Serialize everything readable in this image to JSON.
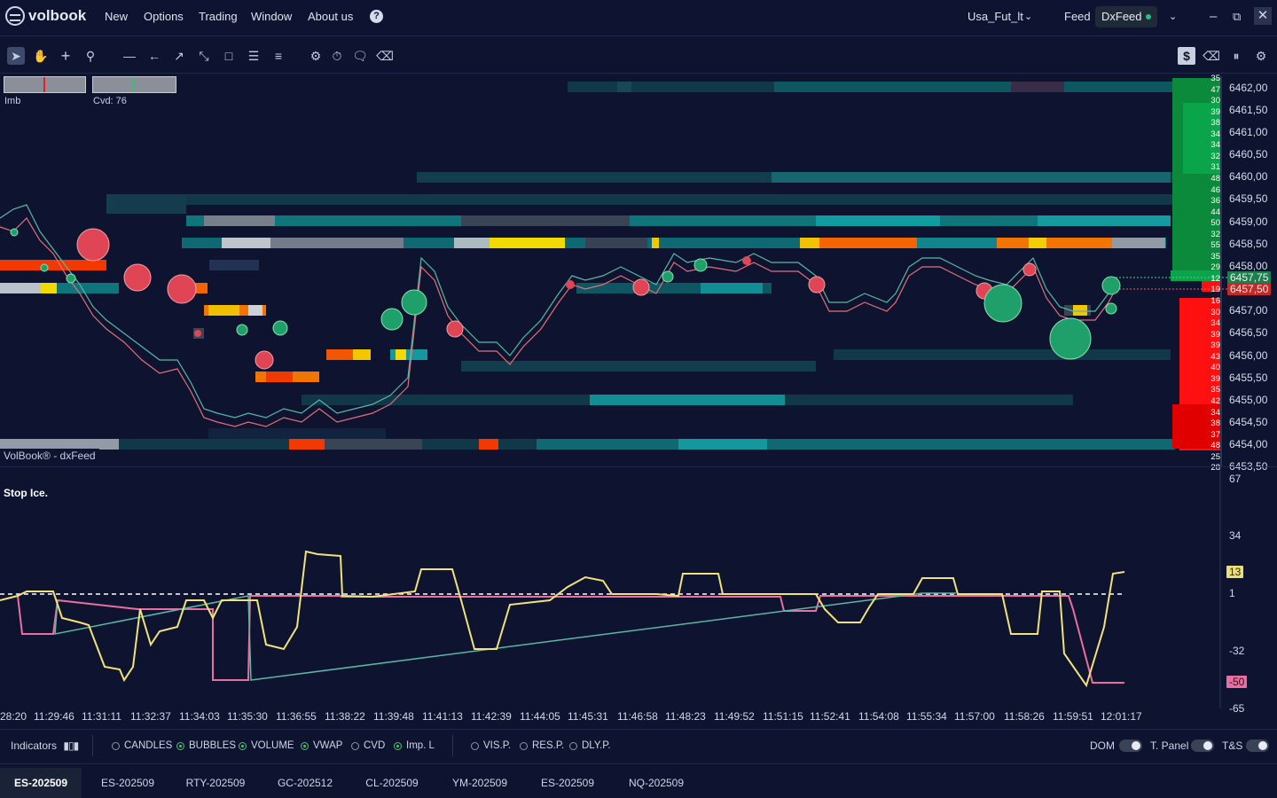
{
  "app": {
    "logo_text": "volbook",
    "menu": [
      "New",
      "Options",
      "Trading",
      "Window",
      "About us"
    ],
    "help_icon": "?",
    "account": "Usa_Fut_lt",
    "feed_label": "Feed",
    "feed_value": "DxFeed",
    "feed_status_color": "#27c27a"
  },
  "main_chart": {
    "indicator_boxes": {
      "imb_label": "Imb",
      "cvd_label": "Cvd: 76"
    },
    "watermark": "VolBook® - dxFeed",
    "price_labels": [
      "6462,00",
      "6461,50",
      "6461,00",
      "6460,50",
      "6460,00",
      "6459,50",
      "6459,00",
      "6458,50",
      "6458,00",
      "6457,00",
      "6456,50",
      "6456,00",
      "6455,50",
      "6455,00",
      "6454,50",
      "6454,00",
      "6453,50"
    ],
    "current_ask": "6457,75",
    "current_bid": "6457,50",
    "ladder_volumes": [
      "35",
      "47",
      "30",
      "39",
      "38",
      "34",
      "34",
      "32",
      "31",
      "48",
      "46",
      "36",
      "44",
      "50",
      "32",
      "55",
      "35",
      "29",
      "12",
      "19",
      "16",
      "30",
      "34",
      "39",
      "39",
      "43",
      "40",
      "39",
      "35",
      "42",
      "34",
      "38",
      "37",
      "48",
      "25",
      "28"
    ]
  },
  "sub_chart": {
    "title": "Stop Ice.",
    "y_labels": [
      "67",
      "34",
      "1",
      "-32",
      "-65"
    ],
    "value_tag_high": "13",
    "value_tag_low": "-50"
  },
  "time_axis": [
    "28:20",
    "11:29:46",
    "11:31:11",
    "11:32:37",
    "11:34:03",
    "11:35:30",
    "11:36:55",
    "11:38:22",
    "11:39:48",
    "11:41:13",
    "11:42:39",
    "11:44:05",
    "11:45:31",
    "11:46:58",
    "11:48:23",
    "11:49:52",
    "11:51:15",
    "11:52:41",
    "11:54:08",
    "11:55:34",
    "11:57:00",
    "11:58:26",
    "11:59:51",
    "12:01:17"
  ],
  "indicator_bar": {
    "indicators_label": "Indicators",
    "options": [
      {
        "label": "CANDLES",
        "on": false
      },
      {
        "label": "BUBBLES",
        "on": true
      },
      {
        "label": "VOLUME",
        "on": true
      },
      {
        "label": "VWAP",
        "on": true
      },
      {
        "label": "CVD",
        "on": false
      },
      {
        "label": "Imp. L",
        "on": true
      },
      {
        "label": "VIS.P.",
        "on": false
      },
      {
        "label": "RES.P.",
        "on": false
      },
      {
        "label": "DLY.P.",
        "on": false
      }
    ],
    "dom_label": "DOM",
    "tpanel_label": "T. Panel",
    "ts_label": "T&S"
  },
  "tabs": [
    "ES-202509",
    "ES-202509",
    "RTY-202509",
    "GC-202512",
    "CL-202509",
    "YM-202509",
    "ES-202509",
    "NQ-202509"
  ]
}
